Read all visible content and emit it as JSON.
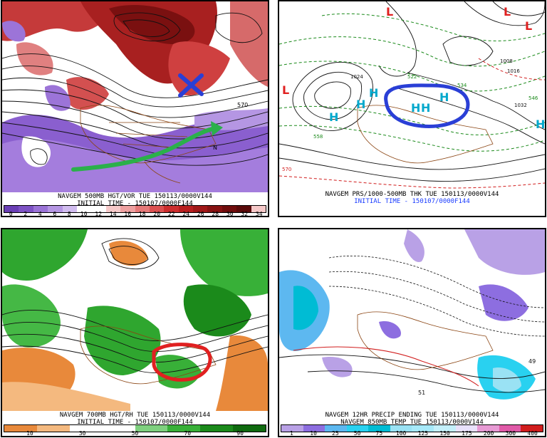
{
  "panels": {
    "p1": {
      "caption_line1": "NAVGEM 500MB HGT/VOR TUE 150113/0000V144",
      "caption_line2": "INITIAL TIME - 150107/0000F144",
      "colorbar_labels": [
        "0",
        "2",
        "4",
        "6",
        "8",
        "10",
        "12",
        "14",
        "16",
        "18",
        "20",
        "22",
        "24",
        "26",
        "28",
        "30",
        "32",
        "34"
      ],
      "colorbar_colors": [
        "#6a3fb5",
        "#7d52c4",
        "#9a73d6",
        "#b596e3",
        "#d1bcef",
        "#ffffff",
        "#ffffff",
        "#f6c9c9",
        "#eea0a0",
        "#e57878",
        "#db5050",
        "#cc2e2e",
        "#b81f1f",
        "#a01818",
        "#871212",
        "#700d0d",
        "#5a0a0a",
        "#f5c8c8"
      ],
      "annotations": {
        "blue_x": "X",
        "contour_label": "570",
        "marker_n": "N"
      }
    },
    "p2": {
      "caption_line1": "NAVGEM PRS/1000-500MB THK TUE 150113/0000V144",
      "caption_line2": "INITIAL TIME - 150107/0000F144",
      "highs": [
        "H",
        "H",
        "H",
        "H",
        "H",
        "H",
        "H"
      ],
      "lows": [
        "L",
        "L",
        "L",
        "L"
      ],
      "labels": [
        "558",
        "570",
        "1032",
        "1016",
        "1008",
        "1024",
        "522",
        "534",
        "546"
      ]
    },
    "p3": {
      "caption_line1": "NAVGEM 700MB HGT/RH TUE 150113/0000V144",
      "caption_line2": "INITIAL TIME - 150107/0000F144",
      "colorbar_labels": [
        "10",
        "30",
        "50",
        "70",
        "90"
      ],
      "colorbar_colors": [
        "#e8893b",
        "#f4b97f",
        "#ffffff",
        "#ffffff",
        "#7fd07f",
        "#38b038",
        "#1b8a1b",
        "#0f6a0f"
      ]
    },
    "p4": {
      "caption_line1": "NAVGEM 12HR PRECIP ENDING TUE 150113/0000V144",
      "caption_line2": "NAVGEM 850MB TEMP TUE 150113/0000V144",
      "colorbar_labels": [
        "1",
        "10",
        "25",
        "50",
        "75",
        "100",
        "125",
        "150",
        "175",
        "200",
        "300",
        "400"
      ],
      "colorbar_colors": [
        "#b9a1e6",
        "#8d6ee0",
        "#5db8f0",
        "#29d1f0",
        "#00bcd4",
        "#9ae2f4",
        "#a7e9f9",
        "#c4f0fb",
        "#e9e1fb",
        "#e79ad4",
        "#e05aa8",
        "#d11d1d"
      ],
      "labels": [
        "49",
        "51"
      ]
    }
  },
  "colors": {
    "blue_annotation": "#2a3fd6",
    "green_arrow": "#2bb04a",
    "red_circle": "#e02020"
  }
}
